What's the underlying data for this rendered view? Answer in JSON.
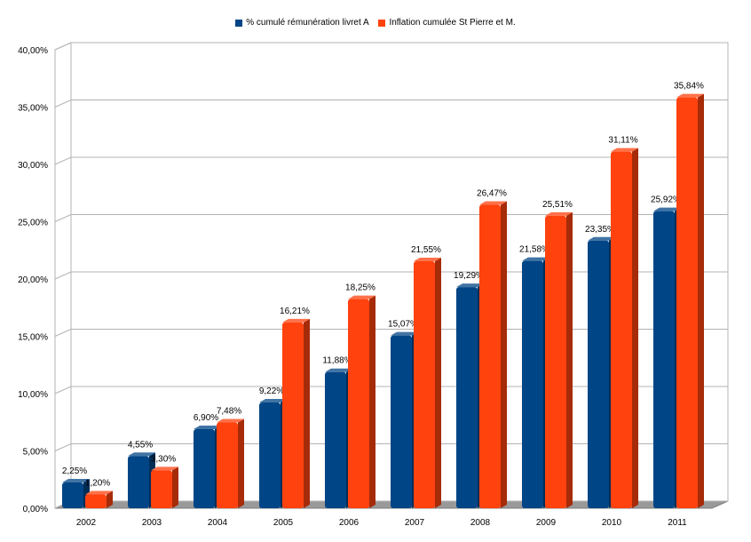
{
  "chart_data": {
    "type": "bar",
    "categories": [
      "2002",
      "2003",
      "2004",
      "2005",
      "2006",
      "2007",
      "2008",
      "2009",
      "2010",
      "2011"
    ],
    "series": [
      {
        "name": "% cumulé rémunération livret A",
        "color": "#004586",
        "values": [
          2.25,
          4.55,
          6.9,
          9.22,
          11.88,
          15.07,
          19.29,
          21.58,
          23.35,
          25.92
        ],
        "labels": [
          "2,25%",
          "4,55%",
          "6,90%",
          "9,22%",
          "11,88%",
          "15,07%",
          "19,29%",
          "21,58%",
          "23,35%",
          "25,92%"
        ]
      },
      {
        "name": "Inflation cumulée St Pierre et M.",
        "color": "#ff420e",
        "values": [
          1.2,
          3.3,
          7.48,
          16.21,
          18.25,
          21.55,
          26.47,
          25.51,
          31.11,
          35.84
        ],
        "labels": [
          "1,20%",
          "3,30%",
          "7,48%",
          "16,21%",
          "18,25%",
          "21,55%",
          "26,47%",
          "25,51%",
          "31,11%",
          "35,84%"
        ]
      }
    ],
    "yticks": [
      0,
      5,
      10,
      15,
      20,
      25,
      30,
      35,
      40
    ],
    "ytick_labels": [
      "0,00%",
      "5,00%",
      "10,00%",
      "15,00%",
      "20,00%",
      "25,00%",
      "30,00%",
      "35,00%",
      "40,00%"
    ],
    "ylim": [
      0,
      40
    ],
    "grid": true,
    "legend_position": "top-center",
    "title": "",
    "xlabel": "",
    "ylabel": ""
  }
}
